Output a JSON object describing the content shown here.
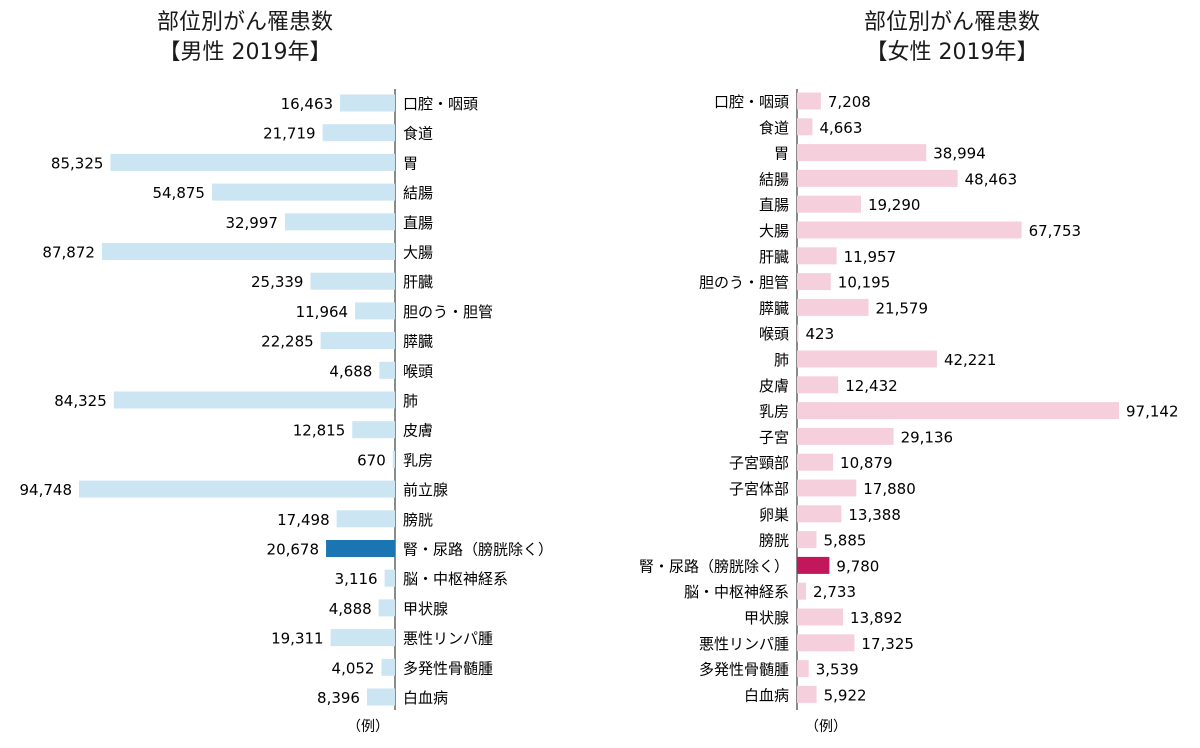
{
  "chart_data": [
    {
      "type": "bar",
      "orientation": "horizontal",
      "direction": "right-to-left",
      "title": "部位別がん罹患数",
      "subtitle": "【男性 2019年】",
      "categories": [
        "口腔・咽頭",
        "食道",
        "胃",
        "結腸",
        "直腸",
        "大腸",
        "肝臓",
        "胆のう・胆管",
        "膵臓",
        "喉頭",
        "肺",
        "皮膚",
        "乳房",
        "前立腺",
        "膀胱",
        "腎・尿路（膀胱除く）",
        "脳・中枢神経系",
        "甲状腺",
        "悪性リンパ腫",
        "多発性骨髄腫",
        "白血病"
      ],
      "values": [
        16463,
        21719,
        85325,
        54875,
        32997,
        87872,
        25339,
        11964,
        22285,
        4688,
        84325,
        12815,
        670,
        94748,
        17498,
        20678,
        3116,
        4888,
        19311,
        4052,
        8396
      ],
      "value_labels": [
        "16,463",
        "21,719",
        "85,325",
        "54,875",
        "32,997",
        "87,872",
        "25,339",
        "11,964",
        "22,285",
        "4,688",
        "84,325",
        "12,815",
        "670",
        "94,748",
        "17,498",
        "20,678",
        "3,116",
        "4,888",
        "19,311",
        "4,052",
        "8,396"
      ],
      "highlight_index": 15,
      "bar_color": "#cce5f2",
      "highlight_color": "#1b75b3",
      "footnote": "（例）",
      "xlim": [
        0,
        100000
      ]
    },
    {
      "type": "bar",
      "orientation": "horizontal",
      "direction": "left-to-right",
      "title": "部位別がん罹患数",
      "subtitle": "【女性 2019年】",
      "categories": [
        "口腔・咽頭",
        "食道",
        "胃",
        "結腸",
        "直腸",
        "大腸",
        "肝臓",
        "胆のう・胆管",
        "膵臓",
        "喉頭",
        "肺",
        "皮膚",
        "乳房",
        "子宮",
        "子宮頸部",
        "子宮体部",
        "卵巣",
        "膀胱",
        "腎・尿路（膀胱除く）",
        "脳・中枢神経系",
        "甲状腺",
        "悪性リンパ腫",
        "多発性骨髄腫",
        "白血病"
      ],
      "values": [
        7208,
        4663,
        38994,
        48463,
        19290,
        67753,
        11957,
        10195,
        21579,
        423,
        42221,
        12432,
        97142,
        29136,
        10879,
        17880,
        13388,
        5885,
        9780,
        2733,
        13892,
        17325,
        3539,
        5922
      ],
      "value_labels": [
        "7,208",
        "4,663",
        "38,994",
        "48,463",
        "19,290",
        "67,753",
        "11,957",
        "10,195",
        "21,579",
        "423",
        "42,221",
        "12,432",
        "97,142",
        "29,136",
        "10,879",
        "17,880",
        "13,388",
        "5,885",
        "9,780",
        "2,733",
        "13,892",
        "17,325",
        "3,539",
        "5,922"
      ],
      "highlight_index": 18,
      "bar_color": "#f5d0dc",
      "highlight_color": "#c2185b",
      "footnote": "（例）",
      "xlim": [
        0,
        100000
      ]
    }
  ]
}
